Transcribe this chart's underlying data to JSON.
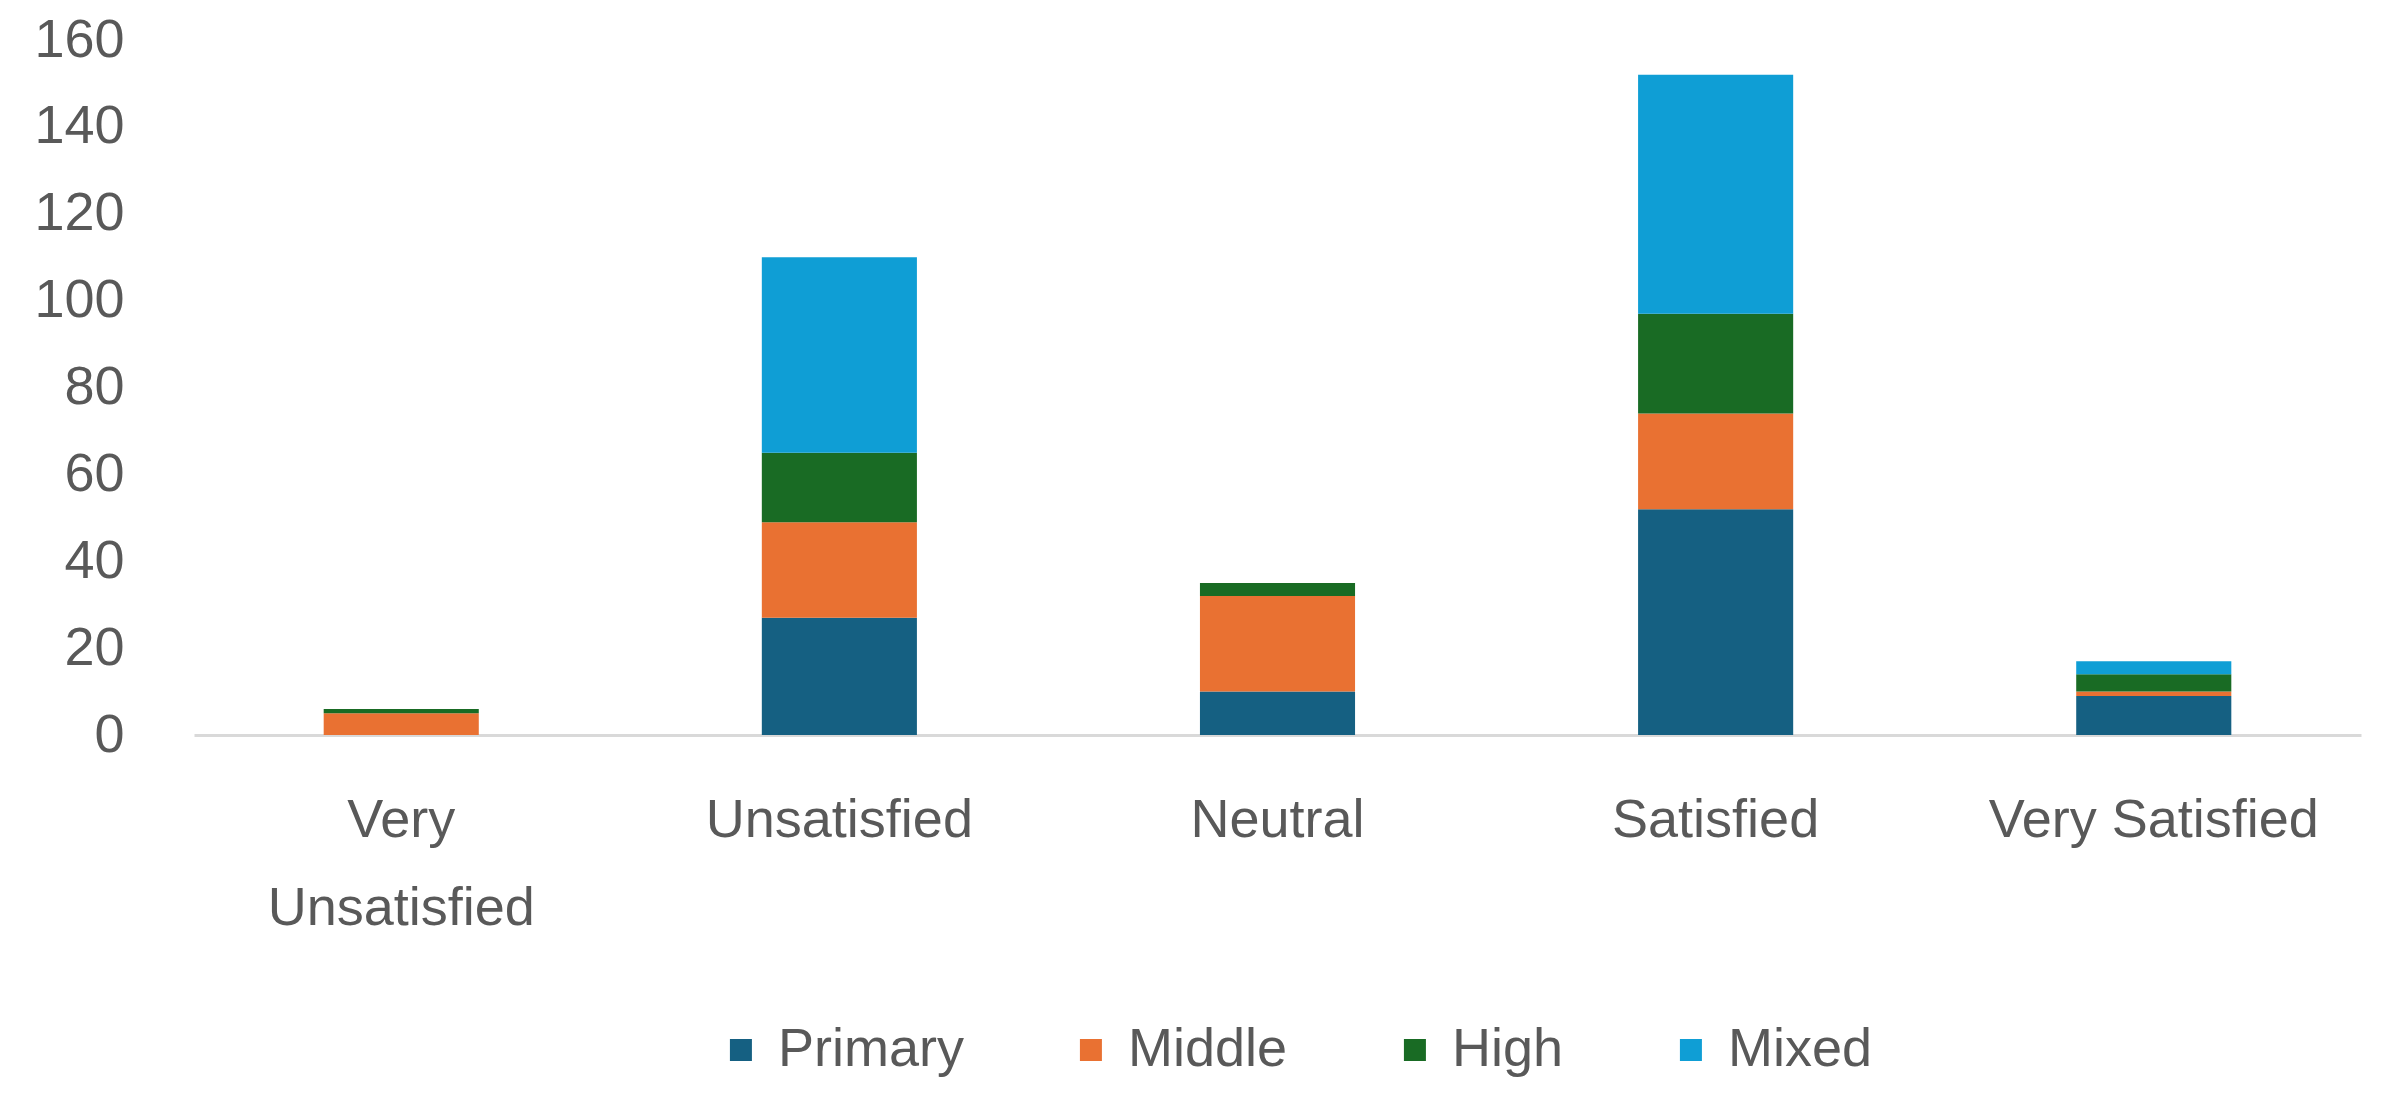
{
  "chart_data": {
    "type": "bar",
    "stacked": true,
    "categories": [
      "Very Unsatisfied",
      "Unsatisfied",
      "Neutral",
      "Satisfied",
      "Very Satisfied"
    ],
    "series": [
      {
        "name": "Primary",
        "color": "#156082",
        "values": [
          0,
          27,
          10,
          52,
          9
        ]
      },
      {
        "name": "Middle",
        "color": "#e97132",
        "values": [
          5,
          22,
          22,
          22,
          1
        ]
      },
      {
        "name": "High",
        "color": "#196b24",
        "values": [
          1,
          16,
          3,
          23,
          4
        ]
      },
      {
        "name": "Mixed",
        "color": "#0f9ed5",
        "values": [
          0,
          45,
          0,
          55,
          3
        ]
      }
    ],
    "ylim": [
      0,
      160
    ],
    "yticks": [
      0,
      20,
      40,
      60,
      80,
      100,
      120,
      140,
      160
    ],
    "legend": "bottom"
  }
}
